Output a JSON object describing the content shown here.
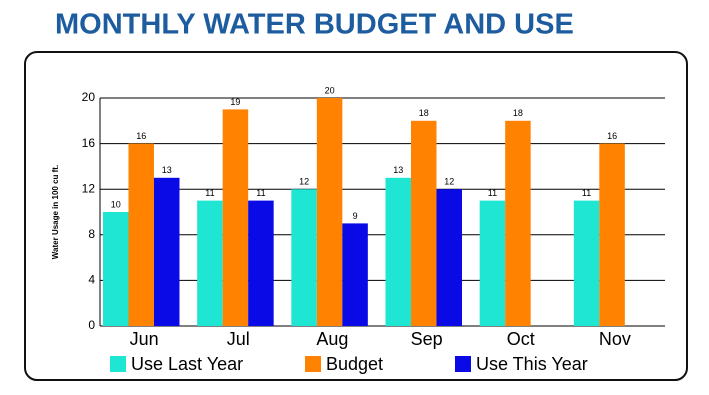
{
  "chart_data": {
    "type": "bar",
    "title": "MONTHLY WATER BUDGET AND USE",
    "y_label": "Water Usage in 100 cu ft.",
    "categories": [
      "Jun",
      "Jul",
      "Aug",
      "Sep",
      "Oct",
      "Nov"
    ],
    "series": [
      {
        "name": "Use Last Year",
        "color": "#1ee6d2",
        "values": [
          10,
          11,
          12,
          13,
          11,
          11
        ]
      },
      {
        "name": "Budget",
        "color": "#ff8200",
        "values": [
          16,
          19,
          20,
          18,
          18,
          16
        ]
      },
      {
        "name": "Use This Year",
        "color": "#0a0ae6",
        "values": [
          13,
          11,
          9,
          12,
          null,
          null
        ]
      }
    ],
    "ylim": [
      0,
      20
    ],
    "yticks": [
      0,
      4,
      8,
      12,
      16,
      20
    ],
    "grid": true
  }
}
